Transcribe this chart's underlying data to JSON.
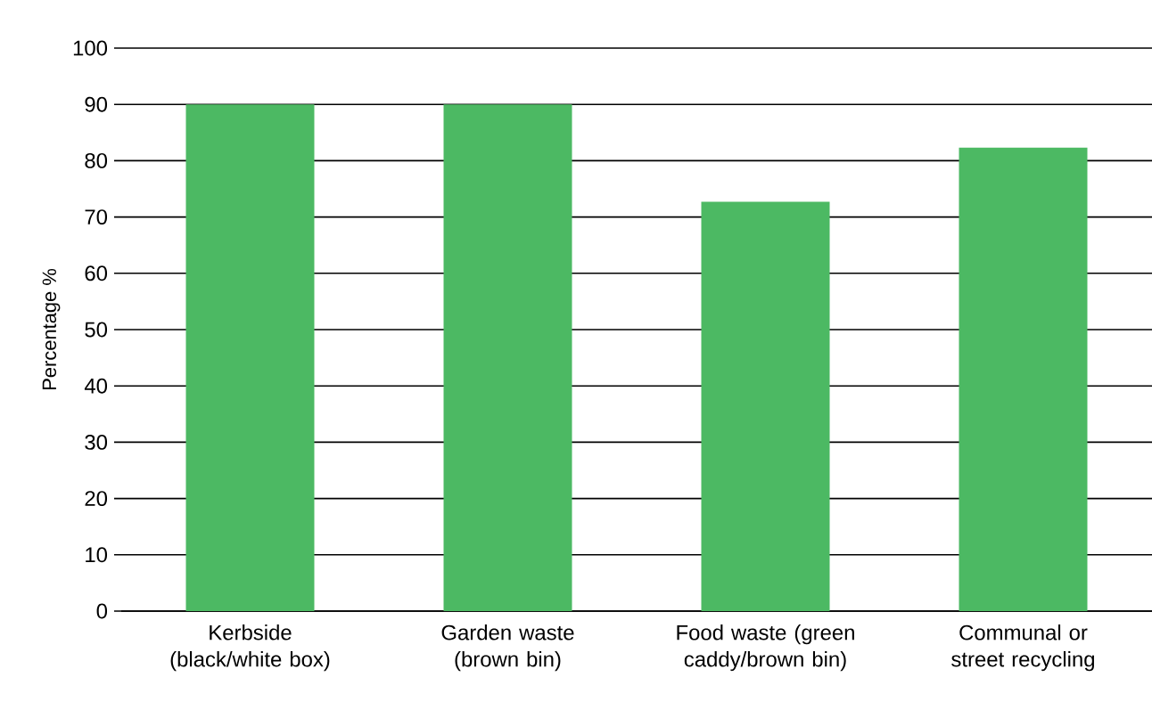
{
  "chart_data": {
    "type": "bar",
    "ylabel": "Percentage %",
    "categories": [
      "Kerbside (black/white box)",
      "Garden waste (brown bin)",
      "Food waste (green caddy/brown bin)",
      "Communal or street recycling"
    ],
    "values": [
      90,
      90,
      72.7,
      82.3
    ],
    "color": "#4cb963",
    "ylim": [
      0,
      100
    ],
    "yticks": [
      0,
      10,
      20,
      30,
      40,
      50,
      60,
      70,
      80,
      90,
      100
    ],
    "grid": "y"
  }
}
